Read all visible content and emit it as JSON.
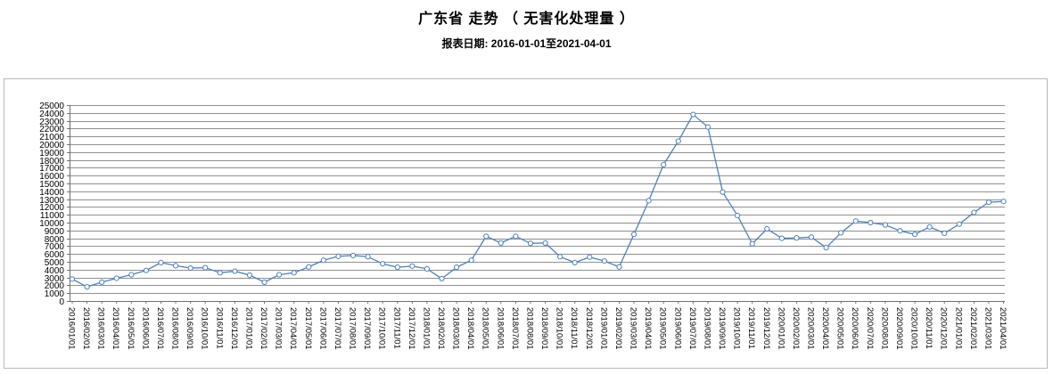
{
  "header": {
    "title": "广东省 走势 （ 无害化处理量 ）",
    "subtitle": "报表日期: 2016-01-01至2021-04-01"
  },
  "chart_data": {
    "type": "line",
    "title": "广东省 走势 （ 无害化处理量 ）",
    "subtitle": "报表日期: 2016-01-01至2021-04-01",
    "series_name": "无害化处理量",
    "x": [
      "2016/01/01",
      "2016/02/01",
      "2016/03/01",
      "2016/04/01",
      "2016/05/01",
      "2016/06/01",
      "2016/07/01",
      "2016/08/01",
      "2016/09/01",
      "2016/10/01",
      "2016/11/01",
      "2016/12/01",
      "2017/01/01",
      "2017/02/01",
      "2017/03/01",
      "2017/04/01",
      "2017/05/01",
      "2017/06/01",
      "2017/07/01",
      "2017/08/01",
      "2017/09/01",
      "2017/10/01",
      "2017/11/01",
      "2017/12/01",
      "2018/01/01",
      "2018/02/01",
      "2018/03/01",
      "2018/04/01",
      "2018/05/01",
      "2018/06/01",
      "2018/07/01",
      "2018/08/01",
      "2018/09/01",
      "2018/10/01",
      "2018/11/01",
      "2018/12/01",
      "2019/01/01",
      "2019/02/01",
      "2019/03/01",
      "2019/04/01",
      "2019/05/01",
      "2019/06/01",
      "2019/07/01",
      "2019/08/01",
      "2019/09/01",
      "2019/10/01",
      "2019/11/01",
      "2019/12/01",
      "2020/01/01",
      "2020/02/01",
      "2020/03/01",
      "2020/04/01",
      "2020/05/01",
      "2020/06/01",
      "2020/07/01",
      "2020/08/01",
      "2020/09/01",
      "2020/10/01",
      "2020/11/01",
      "2020/12/01",
      "2021/01/01",
      "2021/02/01",
      "2021/03/01",
      "2021/04/01"
    ],
    "values": [
      2800,
      1800,
      2400,
      2900,
      3350,
      3900,
      4900,
      4500,
      4200,
      4250,
      3600,
      3800,
      3300,
      2400,
      3350,
      3600,
      4350,
      5200,
      5700,
      5800,
      5650,
      4750,
      4300,
      4450,
      4100,
      2850,
      4300,
      5200,
      8250,
      7400,
      8250,
      7350,
      7400,
      5650,
      4900,
      5600,
      5100,
      4350,
      8500,
      12800,
      17400,
      20400,
      23800,
      22200,
      13900,
      10900,
      7300,
      9200,
      8000,
      8050,
      8150,
      6800,
      8700,
      10200,
      10000,
      9700,
      8950,
      8500,
      9450,
      8650,
      9800,
      11300,
      12600,
      12700
    ],
    "xlabel": "",
    "ylabel": "",
    "ylim": [
      0,
      25000
    ],
    "ytick_step": 1000,
    "grid": true,
    "legend": "none",
    "colors": {
      "line": "#4f81bd",
      "marker_fill": "#ffffff",
      "gridline": "#909090",
      "axis": "#707070",
      "tick_label": "#000000",
      "chart_border": "#b8b8b8"
    }
  }
}
